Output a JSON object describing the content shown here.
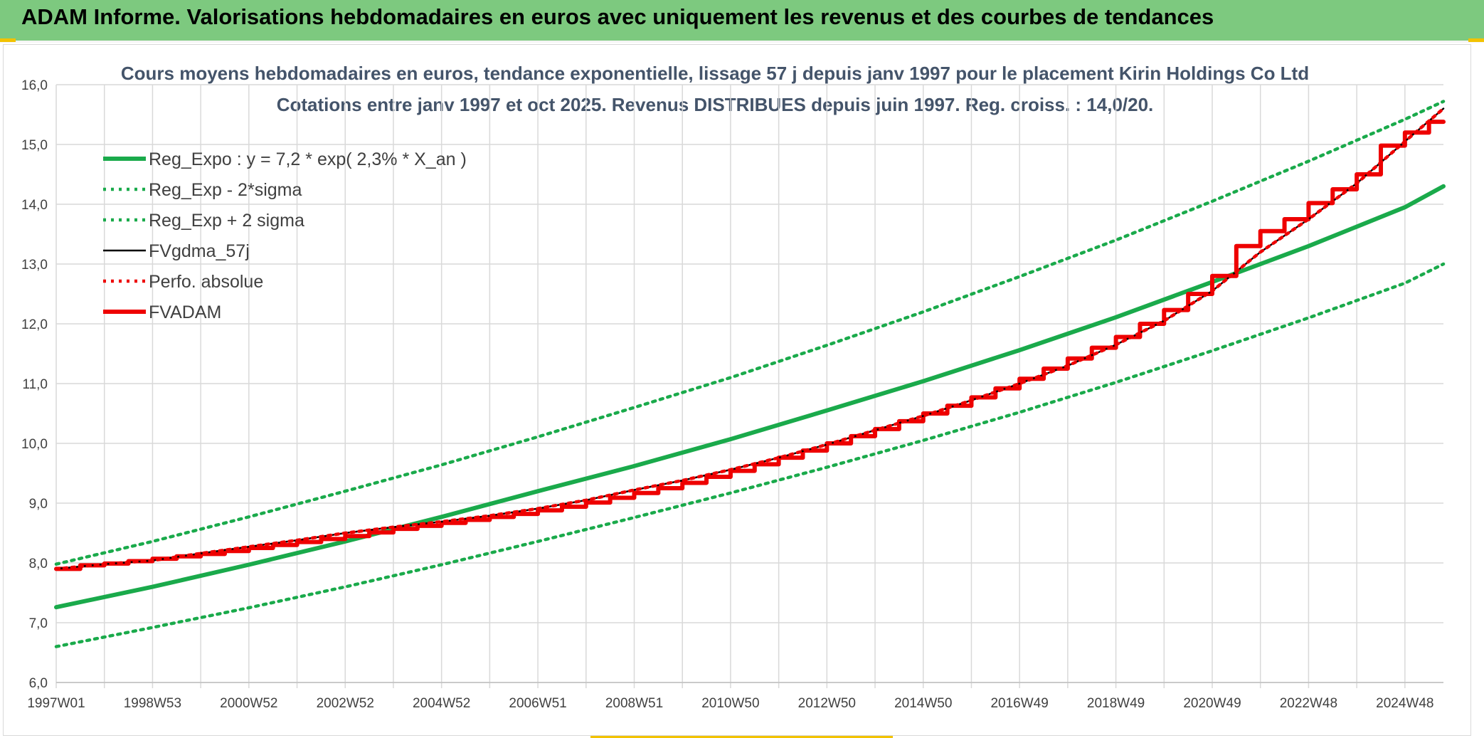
{
  "banner": {
    "title": "ADAM Informe. Valorisations hebdomadaires en euros avec uniquement les revenus et des courbes de tendances"
  },
  "colors": {
    "banner_bg": "#7dc97f",
    "green": "#1aaa4b",
    "black": "#000000",
    "red": "#ee0000",
    "grid": "#d9d9d9"
  },
  "chart_data": {
    "type": "line",
    "title_lines": [
      "Cours moyens hebdomadaires en euros, tendance exponentielle, lissage 57 j depuis janv 1997 pour le placement Kirin Holdings Co Ltd",
      "Cotations entre janv 1997 et oct 2025. Revenus DISTRIBUES depuis juin 1997. Reg. croiss. : 14,0/20."
    ],
    "xlabel": "",
    "ylabel": "",
    "x_range": [
      1997.0,
      2025.8
    ],
    "x_ticks": [
      {
        "label": "1997W01",
        "x": 1997.0
      },
      {
        "label": "1998W53",
        "x": 1999.0
      },
      {
        "label": "2000W52",
        "x": 2001.0
      },
      {
        "label": "2002W52",
        "x": 2003.0
      },
      {
        "label": "2004W52",
        "x": 2005.0
      },
      {
        "label": "2006W51",
        "x": 2007.0
      },
      {
        "label": "2008W51",
        "x": 2009.0
      },
      {
        "label": "2010W50",
        "x": 2011.0
      },
      {
        "label": "2012W50",
        "x": 2013.0
      },
      {
        "label": "2014W50",
        "x": 2015.0
      },
      {
        "label": "2016W49",
        "x": 2017.0
      },
      {
        "label": "2018W49",
        "x": 2019.0
      },
      {
        "label": "2020W49",
        "x": 2021.0
      },
      {
        "label": "2022W48",
        "x": 2023.0
      },
      {
        "label": "2024W48",
        "x": 2025.0
      }
    ],
    "ylim": [
      6.0,
      16.0
    ],
    "y_ticks": [
      "6,0",
      "7,0",
      "8,0",
      "9,0",
      "10,0",
      "11,0",
      "12,0",
      "13,0",
      "14,0",
      "15,0",
      "16,0"
    ],
    "grid": true,
    "legend_position": "top-left",
    "series": [
      {
        "name": "Reg_Expo : y = 7,2 * exp( 2,3% *  X_an )",
        "color": "#1aaa4b",
        "style": "solid-thick",
        "x": [
          1997.0,
          1999.0,
          2001.0,
          2003.0,
          2005.0,
          2007.0,
          2009.0,
          2011.0,
          2013.0,
          2015.0,
          2017.0,
          2019.0,
          2021.0,
          2023.0,
          2025.0,
          2025.8
        ],
        "y": [
          7.26,
          7.6,
          7.97,
          8.36,
          8.77,
          9.2,
          9.62,
          10.07,
          10.55,
          11.04,
          11.56,
          12.11,
          12.7,
          13.3,
          13.95,
          14.3
        ]
      },
      {
        "name": "Reg_Exp - 2*sigma",
        "color": "#1aaa4b",
        "style": "dotted",
        "x": [
          1997.0,
          1999.0,
          2001.0,
          2003.0,
          2005.0,
          2007.0,
          2009.0,
          2011.0,
          2013.0,
          2015.0,
          2017.0,
          2019.0,
          2021.0,
          2023.0,
          2025.0,
          2025.8
        ],
        "y": [
          6.6,
          6.92,
          7.25,
          7.6,
          7.97,
          8.36,
          8.76,
          9.17,
          9.6,
          10.05,
          10.52,
          11.02,
          11.55,
          12.1,
          12.68,
          13.0
        ]
      },
      {
        "name": "Reg_Exp + 2 sigma",
        "color": "#1aaa4b",
        "style": "dotted",
        "x": [
          1997.0,
          1999.0,
          2001.0,
          2003.0,
          2005.0,
          2007.0,
          2009.0,
          2011.0,
          2013.0,
          2015.0,
          2017.0,
          2019.0,
          2021.0,
          2023.0,
          2025.0,
          2025.8
        ],
        "y": [
          7.98,
          8.36,
          8.77,
          9.2,
          9.64,
          10.11,
          10.6,
          11.1,
          11.64,
          12.2,
          12.79,
          13.4,
          14.05,
          14.72,
          15.42,
          15.72
        ]
      },
      {
        "name": "FVgdma_57j",
        "color": "#000000",
        "style": "solid-thin",
        "x": [
          1997.0,
          1998.0,
          1999.0,
          2000.0,
          2001.0,
          2002.0,
          2003.0,
          2004.0,
          2005.0,
          2006.0,
          2007.0,
          2008.0,
          2009.0,
          2010.0,
          2011.0,
          2012.0,
          2013.0,
          2014.0,
          2015.0,
          2016.0,
          2017.0,
          2018.0,
          2019.0,
          2020.0,
          2021.0,
          2022.0,
          2023.0,
          2024.0,
          2025.0,
          2025.8
        ],
        "y": [
          7.9,
          7.98,
          8.04,
          8.16,
          8.27,
          8.38,
          8.5,
          8.6,
          8.69,
          8.79,
          8.91,
          9.05,
          9.22,
          9.38,
          9.56,
          9.76,
          9.98,
          10.22,
          10.46,
          10.72,
          11.0,
          11.3,
          11.65,
          12.05,
          12.55,
          13.2,
          13.75,
          14.35,
          15.05,
          15.6
        ]
      },
      {
        "name": "Perfo. absolue",
        "color": "#ee0000",
        "style": "dotted",
        "x": [
          1997.0,
          1998.0,
          1999.0,
          2000.0,
          2001.0,
          2002.0,
          2003.0,
          2004.0,
          2005.0,
          2006.0,
          2007.0,
          2008.0,
          2009.0,
          2010.0,
          2011.0,
          2012.0,
          2013.0,
          2014.0,
          2015.0,
          2016.0,
          2017.0,
          2018.0,
          2019.0,
          2020.0,
          2021.0,
          2022.0,
          2023.0,
          2024.0,
          2025.0,
          2025.8
        ],
        "y": [
          7.9,
          7.98,
          8.04,
          8.16,
          8.27,
          8.38,
          8.5,
          8.6,
          8.69,
          8.79,
          8.91,
          9.05,
          9.22,
          9.38,
          9.56,
          9.76,
          9.98,
          10.22,
          10.46,
          10.72,
          11.0,
          11.3,
          11.65,
          12.05,
          12.55,
          13.2,
          13.75,
          14.35,
          15.05,
          15.6
        ]
      },
      {
        "name": "FVADAM",
        "color": "#ee0000",
        "style": "step-thick",
        "x": [
          1997.0,
          1997.5,
          1998.0,
          1998.5,
          1999.0,
          1999.5,
          2000.0,
          2000.5,
          2001.0,
          2001.5,
          2002.0,
          2002.5,
          2003.0,
          2003.5,
          2004.0,
          2004.5,
          2005.0,
          2005.5,
          2006.0,
          2006.5,
          2007.0,
          2007.5,
          2008.0,
          2008.5,
          2009.0,
          2009.5,
          2010.0,
          2010.5,
          2011.0,
          2011.5,
          2012.0,
          2012.5,
          2013.0,
          2013.5,
          2014.0,
          2014.5,
          2015.0,
          2015.5,
          2016.0,
          2016.5,
          2017.0,
          2017.5,
          2018.0,
          2018.5,
          2019.0,
          2019.5,
          2020.0,
          2020.5,
          2021.0,
          2021.5,
          2022.0,
          2022.5,
          2023.0,
          2023.5,
          2024.0,
          2024.5,
          2025.0,
          2025.5
        ],
        "y": [
          7.9,
          7.96,
          7.99,
          8.03,
          8.07,
          8.11,
          8.15,
          8.2,
          8.25,
          8.3,
          8.35,
          8.4,
          8.45,
          8.51,
          8.57,
          8.62,
          8.67,
          8.72,
          8.77,
          8.82,
          8.88,
          8.94,
          9.01,
          9.09,
          9.17,
          9.25,
          9.34,
          9.44,
          9.54,
          9.65,
          9.76,
          9.88,
          10.0,
          10.12,
          10.24,
          10.37,
          10.5,
          10.63,
          10.77,
          10.92,
          11.08,
          11.25,
          11.42,
          11.6,
          11.78,
          12.0,
          12.23,
          12.5,
          12.8,
          13.3,
          13.55,
          13.75,
          14.02,
          14.25,
          14.5,
          14.98,
          15.2,
          15.38
        ]
      }
    ]
  }
}
